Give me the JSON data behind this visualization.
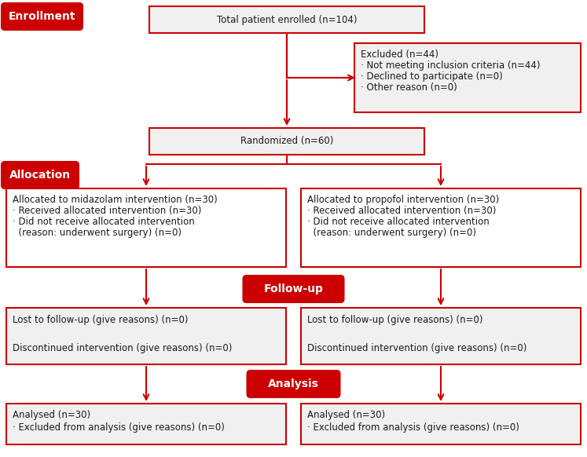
{
  "bg_color": "#ffffff",
  "red_color": "#cc0000",
  "gray_fill_color": "#f0f0f0",
  "text_color": "#1a1a1a",
  "font_size": 8.5,
  "label_font_size": 10,
  "enrollment_label": "Enrollment",
  "allocation_label": "Allocation",
  "followup_label": "Follow-up",
  "analysis_label": "Analysis",
  "enrolled_text": "Total patient enrolled (n=104)",
  "excluded_title": "Excluded (n=44)",
  "excluded_lines": [
    "· Not meeting inclusion criteria (n=44)",
    "· Declined to participate (n=0)",
    "· Other reason (n=0)"
  ],
  "randomized_text": "Randomized (n=60)",
  "alloc_left_lines": [
    "Allocated to midazolam intervention (n=30)",
    "· Received allocated intervention (n=30)",
    "· Did not receive allocated intervention",
    "  (reason: underwent surgery) (n=0)"
  ],
  "alloc_right_lines": [
    "Allocated to propofol intervention (n=30)",
    "· Received allocated intervention (n=30)",
    "· Did not receive allocated intervention",
    "  (reason: underwent surgery) (n=0)"
  ],
  "followup_left_lines": [
    "Lost to follow-up (give reasons) (n=0)",
    "",
    "Discontinued intervention (give reasons) (n=0)"
  ],
  "followup_right_lines": [
    "Lost to follow-up (give reasons) (n=0)",
    "",
    "Discontinued intervention (give reasons) (n=0)"
  ],
  "analysis_left_lines": [
    "Analysed (n=30)",
    "· Excluded from analysis (give reasons) (n=0)"
  ],
  "analysis_right_lines": [
    "Analysed (n=30)",
    "· Excluded from analysis (give reasons) (n=0)"
  ]
}
